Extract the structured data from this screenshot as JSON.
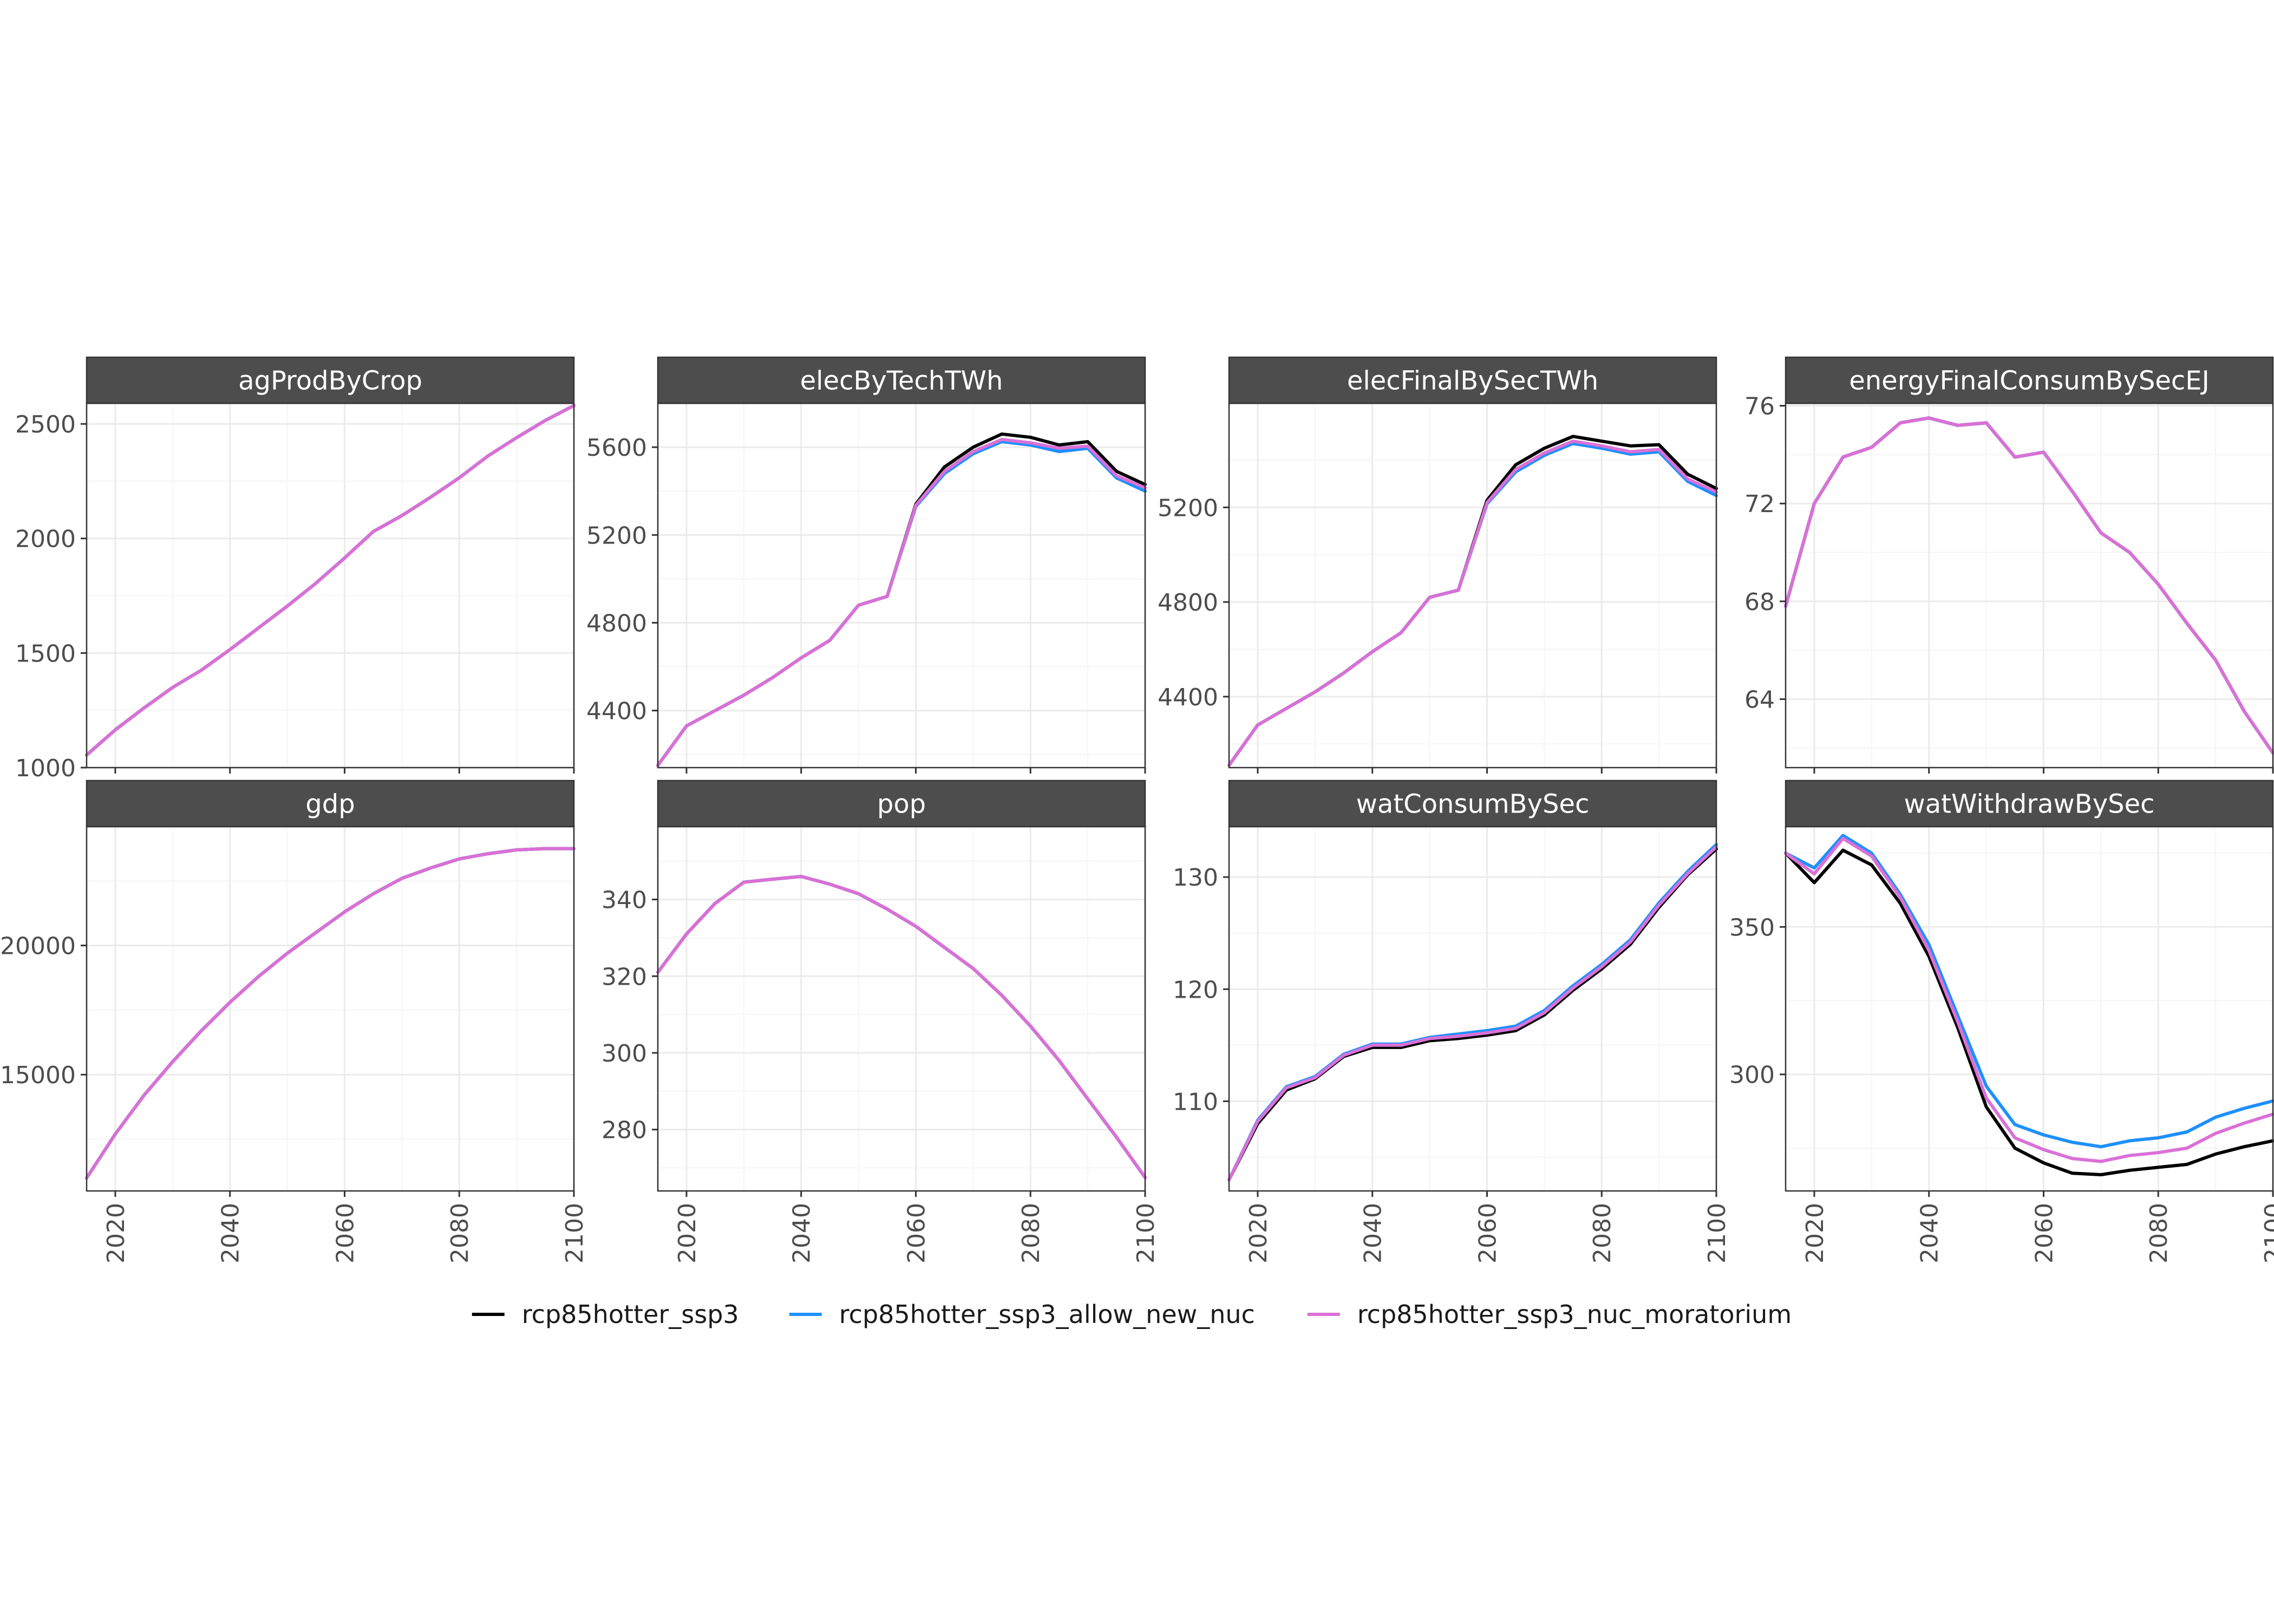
{
  "legend": {
    "entries": [
      {
        "label": "rcp85hotter_ssp3",
        "color": "#000000"
      },
      {
        "label": "rcp85hotter_ssp3_allow_new_nuc",
        "color": "#1E90FF"
      },
      {
        "label": "rcp85hotter_ssp3_nuc_moratorium",
        "color": "#DA70D6"
      }
    ],
    "placement": "bottom"
  },
  "colors": {
    "strip_bg": "#4D4D4D",
    "strip_text": "#FFFFFF",
    "panel_border": "#333333",
    "grid_major": "#EBEBEB",
    "grid_minor": "#F5F5F5",
    "axis_text": "#4D4D4D"
  },
  "chart_data": [
    {
      "type": "line",
      "title": "agProdByCrop",
      "xlim": [
        2015,
        2100
      ],
      "ylim": [
        1000,
        2590
      ],
      "xticks": [
        2020,
        2040,
        2060,
        2080,
        2100
      ],
      "yticks": [
        1000,
        1500,
        2000,
        2500
      ],
      "x": [
        2015,
        2020,
        2025,
        2030,
        2035,
        2040,
        2045,
        2050,
        2055,
        2060,
        2065,
        2070,
        2075,
        2080,
        2085,
        2090,
        2095,
        2100
      ],
      "series": [
        {
          "name": "rcp85hotter_ssp3",
          "values": [
            1055,
            1165,
            1260,
            1350,
            1425,
            1515,
            1610,
            1705,
            1805,
            1915,
            2030,
            2100,
            2180,
            2265,
            2360,
            2440,
            2515,
            2580
          ]
        },
        {
          "name": "rcp85hotter_ssp3_allow_new_nuc",
          "values": [
            1055,
            1165,
            1260,
            1350,
            1425,
            1515,
            1610,
            1705,
            1805,
            1915,
            2030,
            2100,
            2180,
            2265,
            2360,
            2440,
            2515,
            2580
          ]
        },
        {
          "name": "rcp85hotter_ssp3_nuc_moratorium",
          "values": [
            1055,
            1165,
            1260,
            1350,
            1425,
            1515,
            1610,
            1705,
            1805,
            1915,
            2030,
            2100,
            2180,
            2265,
            2360,
            2440,
            2515,
            2580
          ]
        }
      ]
    },
    {
      "type": "line",
      "title": "elecByTechTWh",
      "xlim": [
        2015,
        2100
      ],
      "ylim": [
        4140,
        5800
      ],
      "xticks": [
        2020,
        2040,
        2060,
        2080,
        2100
      ],
      "yticks": [
        4400,
        4800,
        5200,
        5600
      ],
      "x": [
        2015,
        2020,
        2025,
        2030,
        2035,
        2040,
        2045,
        2050,
        2055,
        2060,
        2065,
        2070,
        2075,
        2080,
        2085,
        2090,
        2095,
        2100
      ],
      "series": [
        {
          "name": "rcp85hotter_ssp3",
          "values": [
            4150,
            4330,
            4400,
            4470,
            4550,
            4640,
            4720,
            4880,
            4920,
            5340,
            5510,
            5600,
            5660,
            5645,
            5610,
            5625,
            5490,
            5430
          ]
        },
        {
          "name": "rcp85hotter_ssp3_allow_new_nuc",
          "values": [
            4150,
            4330,
            4400,
            4470,
            4550,
            4640,
            4720,
            4880,
            4920,
            5330,
            5480,
            5570,
            5625,
            5610,
            5580,
            5595,
            5460,
            5400
          ]
        },
        {
          "name": "rcp85hotter_ssp3_nuc_moratorium",
          "values": [
            4150,
            4330,
            4400,
            4470,
            4550,
            4640,
            4720,
            4880,
            4920,
            5335,
            5490,
            5580,
            5635,
            5620,
            5595,
            5605,
            5470,
            5415
          ]
        }
      ]
    },
    {
      "type": "line",
      "title": "elecFinalBySecTWh",
      "xlim": [
        2015,
        2100
      ],
      "ylim": [
        4100,
        5640
      ],
      "xticks": [
        2020,
        2040,
        2060,
        2080,
        2100
      ],
      "yticks": [
        4400,
        4800,
        5200
      ],
      "x": [
        2015,
        2020,
        2025,
        2030,
        2035,
        2040,
        2045,
        2050,
        2055,
        2060,
        2065,
        2070,
        2075,
        2080,
        2085,
        2090,
        2095,
        2100
      ],
      "series": [
        {
          "name": "rcp85hotter_ssp3",
          "values": [
            4110,
            4280,
            4350,
            4420,
            4500,
            4590,
            4670,
            4820,
            4850,
            5230,
            5380,
            5450,
            5500,
            5480,
            5460,
            5465,
            5340,
            5280
          ]
        },
        {
          "name": "rcp85hotter_ssp3_allow_new_nuc",
          "values": [
            4110,
            4280,
            4350,
            4420,
            4500,
            4590,
            4670,
            4820,
            4850,
            5215,
            5350,
            5420,
            5470,
            5450,
            5425,
            5435,
            5310,
            5250
          ]
        },
        {
          "name": "rcp85hotter_ssp3_nuc_moratorium",
          "values": [
            4110,
            4280,
            4350,
            4420,
            4500,
            4590,
            4670,
            4820,
            4850,
            5220,
            5360,
            5430,
            5480,
            5460,
            5435,
            5445,
            5320,
            5265
          ]
        }
      ]
    },
    {
      "type": "line",
      "title": "energyFinalConsumBySecEJ",
      "xlim": [
        2015,
        2100
      ],
      "ylim": [
        61.2,
        76.1
      ],
      "xticks": [
        2020,
        2040,
        2060,
        2080,
        2100
      ],
      "yticks": [
        64,
        68,
        72,
        76
      ],
      "x": [
        2015,
        2020,
        2025,
        2030,
        2035,
        2040,
        2045,
        2050,
        2055,
        2060,
        2065,
        2070,
        2075,
        2080,
        2085,
        2090,
        2095,
        2100
      ],
      "series": [
        {
          "name": "rcp85hotter_ssp3",
          "values": [
            67.8,
            72.0,
            73.9,
            74.3,
            75.3,
            75.5,
            75.2,
            75.3,
            73.9,
            74.1,
            72.5,
            70.8,
            70.0,
            68.7,
            67.1,
            65.6,
            63.5,
            61.8
          ]
        },
        {
          "name": "rcp85hotter_ssp3_allow_new_nuc",
          "values": [
            67.8,
            72.0,
            73.9,
            74.3,
            75.3,
            75.5,
            75.2,
            75.3,
            73.9,
            74.1,
            72.5,
            70.8,
            70.0,
            68.7,
            67.1,
            65.6,
            63.5,
            61.8
          ]
        },
        {
          "name": "rcp85hotter_ssp3_nuc_moratorium",
          "values": [
            67.8,
            72.0,
            73.9,
            74.3,
            75.3,
            75.5,
            75.2,
            75.3,
            73.9,
            74.1,
            72.5,
            70.8,
            70.0,
            68.7,
            67.1,
            65.6,
            63.5,
            61.8
          ]
        }
      ]
    },
    {
      "type": "line",
      "title": "gdp",
      "xlim": [
        2015,
        2100
      ],
      "ylim": [
        10500,
        24600
      ],
      "xticks": [
        2020,
        2040,
        2060,
        2080,
        2100
      ],
      "yticks": [
        15000,
        20000
      ],
      "x": [
        2015,
        2020,
        2025,
        2030,
        2035,
        2040,
        2045,
        2050,
        2055,
        2060,
        2065,
        2070,
        2075,
        2080,
        2085,
        2090,
        2095,
        2100
      ],
      "series": [
        {
          "name": "rcp85hotter_ssp3",
          "values": [
            11000,
            12700,
            14200,
            15500,
            16700,
            17800,
            18800,
            19700,
            20500,
            21300,
            22000,
            22600,
            23000,
            23350,
            23550,
            23700,
            23750,
            23750
          ]
        },
        {
          "name": "rcp85hotter_ssp3_allow_new_nuc",
          "values": [
            11000,
            12700,
            14200,
            15500,
            16700,
            17800,
            18800,
            19700,
            20500,
            21300,
            22000,
            22600,
            23000,
            23350,
            23550,
            23700,
            23750,
            23750
          ]
        },
        {
          "name": "rcp85hotter_ssp3_nuc_moratorium",
          "values": [
            11000,
            12700,
            14200,
            15500,
            16700,
            17800,
            18800,
            19700,
            20500,
            21300,
            22000,
            22600,
            23000,
            23350,
            23550,
            23700,
            23750,
            23750
          ]
        }
      ]
    },
    {
      "type": "line",
      "title": "pop",
      "xlim": [
        2015,
        2100
      ],
      "ylim": [
        264,
        359
      ],
      "xticks": [
        2020,
        2040,
        2060,
        2080,
        2100
      ],
      "yticks": [
        280,
        300,
        320,
        340
      ],
      "x": [
        2015,
        2020,
        2025,
        2030,
        2035,
        2040,
        2045,
        2050,
        2055,
        2060,
        2065,
        2070,
        2075,
        2080,
        2085,
        2090,
        2095,
        2100
      ],
      "series": [
        {
          "name": "rcp85hotter_ssp3",
          "values": [
            321,
            331,
            339,
            344.5,
            345.3,
            346,
            344,
            341.5,
            337.5,
            333,
            327.5,
            322,
            315,
            307,
            298,
            288,
            278,
            267.5
          ]
        },
        {
          "name": "rcp85hotter_ssp3_allow_new_nuc",
          "values": [
            321,
            331,
            339,
            344.5,
            345.3,
            346,
            344,
            341.5,
            337.5,
            333,
            327.5,
            322,
            315,
            307,
            298,
            288,
            278,
            267.5
          ]
        },
        {
          "name": "rcp85hotter_ssp3_nuc_moratorium",
          "values": [
            321,
            331,
            339,
            344.5,
            345.3,
            346,
            344,
            341.5,
            337.5,
            333,
            327.5,
            322,
            315,
            307,
            298,
            288,
            278,
            267.5
          ]
        }
      ]
    },
    {
      "type": "line",
      "title": "watConsumBySec",
      "xlim": [
        2015,
        2100
      ],
      "ylim": [
        102,
        134.5
      ],
      "xticks": [
        2020,
        2040,
        2060,
        2080,
        2100
      ],
      "yticks": [
        110,
        120,
        130
      ],
      "x": [
        2015,
        2020,
        2025,
        2030,
        2035,
        2040,
        2045,
        2050,
        2055,
        2060,
        2065,
        2070,
        2075,
        2080,
        2085,
        2090,
        2095,
        2100
      ],
      "series": [
        {
          "name": "rcp85hotter_ssp3",
          "values": [
            103,
            108,
            111,
            112,
            114,
            114.8,
            114.8,
            115.4,
            115.6,
            115.9,
            116.3,
            117.7,
            119.9,
            121.8,
            124,
            127.3,
            130.2,
            132.5
          ]
        },
        {
          "name": "rcp85hotter_ssp3_allow_new_nuc",
          "values": [
            103,
            108.3,
            111.3,
            112.2,
            114.2,
            115.1,
            115.1,
            115.7,
            116,
            116.3,
            116.7,
            118.1,
            120.3,
            122.2,
            124.4,
            127.7,
            130.5,
            132.9
          ]
        },
        {
          "name": "rcp85hotter_ssp3_nuc_moratorium",
          "values": [
            103,
            108.2,
            111.2,
            112.1,
            114.1,
            115,
            115,
            115.6,
            115.8,
            116.1,
            116.5,
            117.9,
            120.1,
            122,
            124.2,
            127.5,
            130.3,
            132.7
          ]
        }
      ]
    },
    {
      "type": "line",
      "title": "watWithdrawBySec",
      "xlim": [
        2015,
        2100
      ],
      "ylim": [
        260.5,
        384
      ],
      "xticks": [
        2020,
        2040,
        2060,
        2080,
        2100
      ],
      "yticks": [
        300,
        350
      ],
      "x": [
        2015,
        2020,
        2025,
        2030,
        2035,
        2040,
        2045,
        2050,
        2055,
        2060,
        2065,
        2070,
        2075,
        2080,
        2085,
        2090,
        2095,
        2100
      ],
      "series": [
        {
          "name": "rcp85hotter_ssp3",
          "values": [
            375,
            365,
            376,
            371,
            358,
            340,
            316,
            289,
            275,
            270,
            266.5,
            266,
            267.5,
            268.5,
            269.5,
            273,
            275.5,
            277.5
          ]
        },
        {
          "name": "rcp85hotter_ssp3_allow_new_nuc",
          "values": [
            375,
            370,
            381,
            375,
            361,
            344,
            320,
            296,
            283,
            279.5,
            277,
            275.5,
            277.5,
            278.5,
            280.5,
            285.5,
            288.5,
            291
          ]
        },
        {
          "name": "rcp85hotter_ssp3_nuc_moratorium",
          "values": [
            375,
            368,
            380,
            374,
            360,
            342,
            318,
            292,
            278.5,
            274.5,
            271.5,
            270.5,
            272.5,
            273.5,
            275,
            280,
            283.5,
            286.5
          ]
        }
      ]
    }
  ]
}
